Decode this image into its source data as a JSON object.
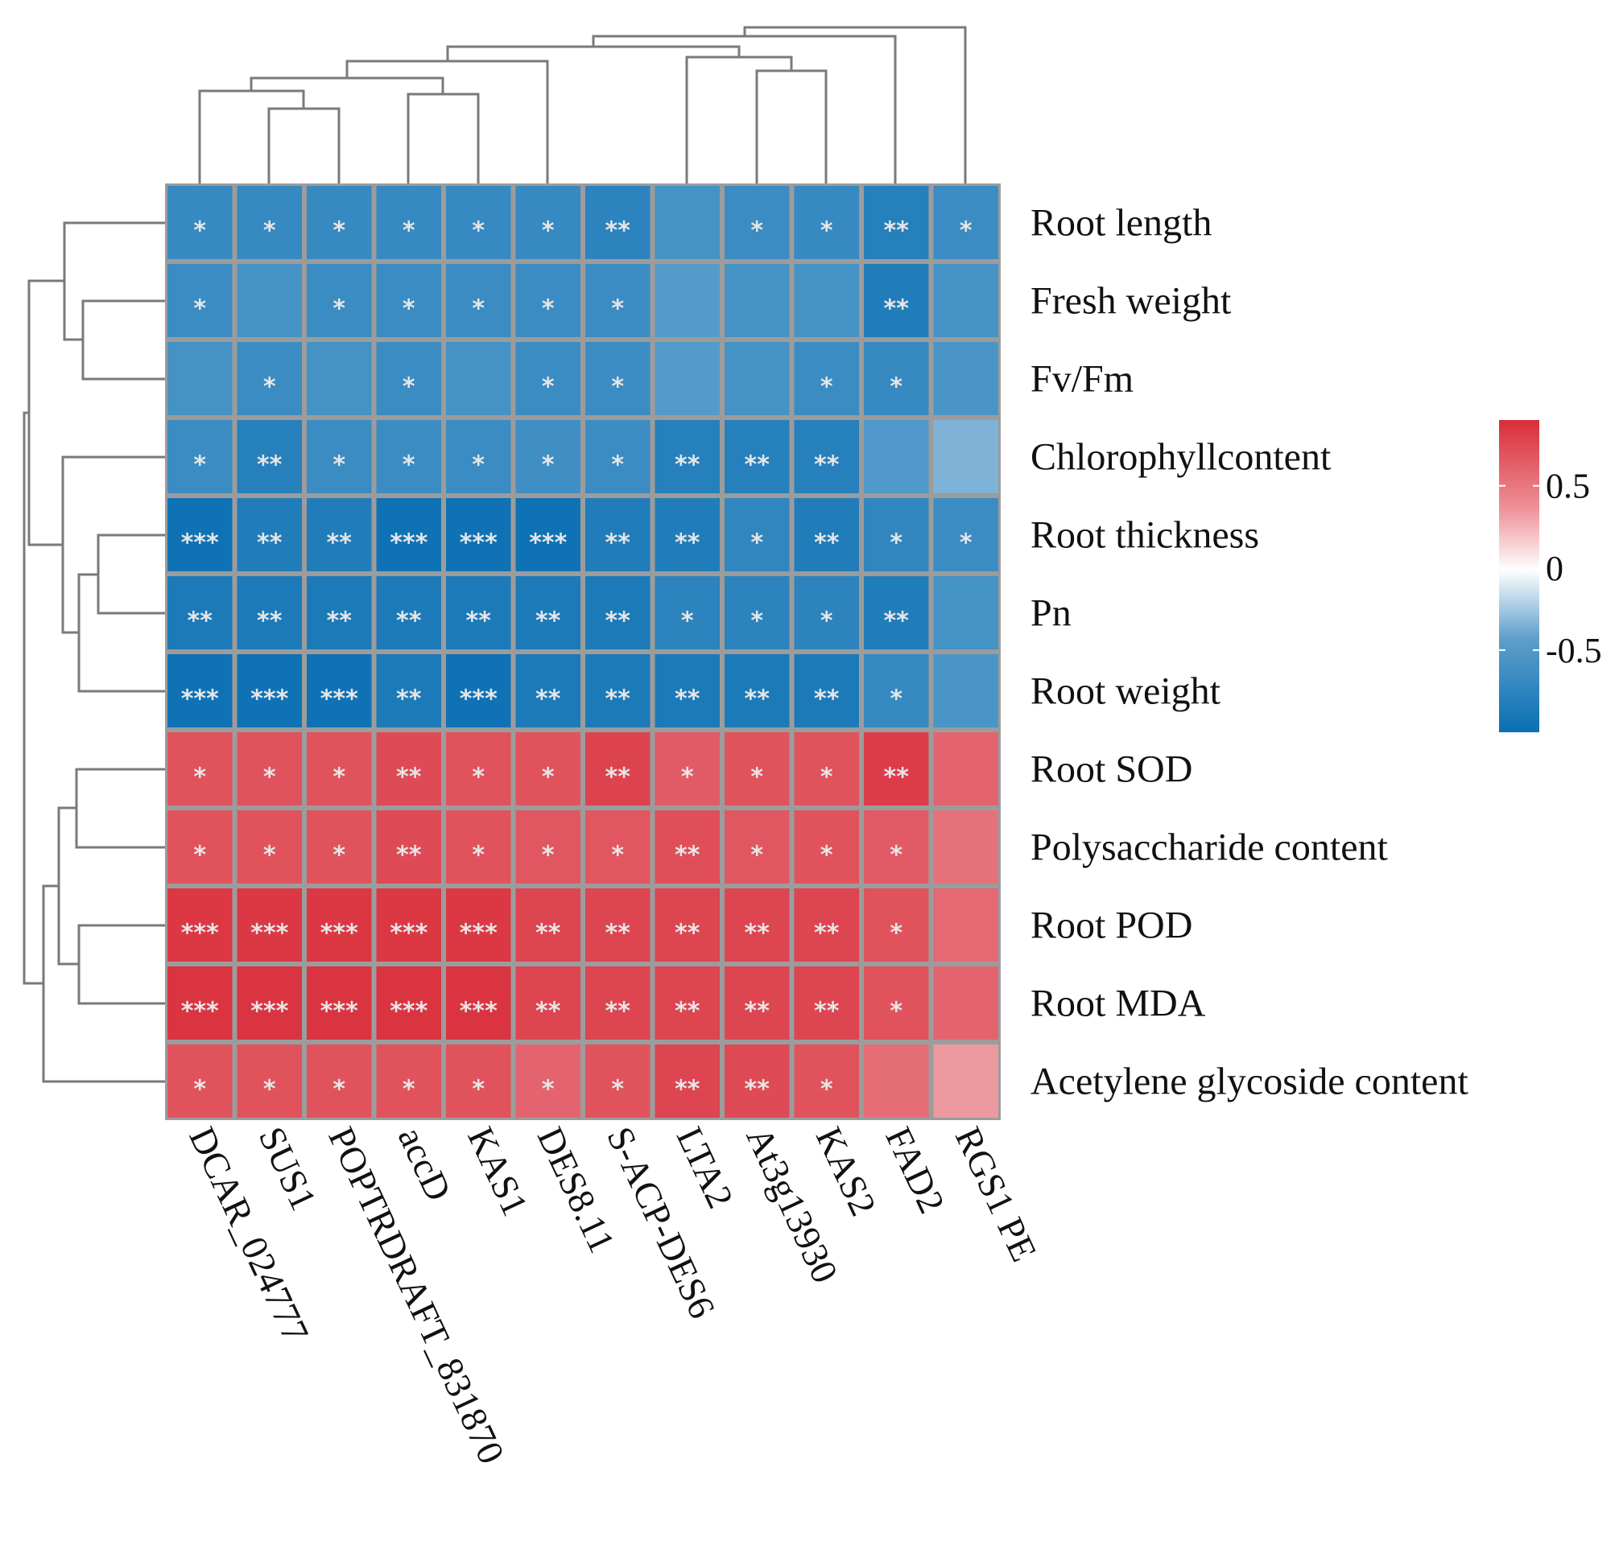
{
  "chart_data": {
    "type": "heatmap",
    "title": "",
    "rows": [
      "Root length",
      "Fresh weight",
      "Fv/Fm",
      "Chlorophyllcontent",
      "Root thickness",
      "Pn",
      "Root weight",
      "Root SOD",
      "Polysaccharide content",
      "Root POD",
      "Root MDA",
      "Acetylene glycoside content"
    ],
    "columns": [
      "DCAR_024777",
      "SUS1",
      "POPTRDRAFT_831870",
      "accD",
      "KAS1",
      "DES8.11",
      "S-ACP-DES6",
      "LTA2",
      "At3g13930",
      "KAS2",
      "FAD2",
      "RGS1 PE"
    ],
    "values": [
      [
        -0.78,
        -0.78,
        -0.78,
        -0.78,
        -0.78,
        -0.78,
        -0.82,
        -0.72,
        -0.76,
        -0.78,
        -0.84,
        -0.76
      ],
      [
        -0.76,
        -0.72,
        -0.76,
        -0.76,
        -0.76,
        -0.76,
        -0.76,
        -0.66,
        -0.72,
        -0.72,
        -0.86,
        -0.72
      ],
      [
        -0.72,
        -0.76,
        -0.72,
        -0.76,
        -0.72,
        -0.76,
        -0.76,
        -0.66,
        -0.72,
        -0.76,
        -0.78,
        -0.7
      ],
      [
        -0.76,
        -0.84,
        -0.76,
        -0.76,
        -0.76,
        -0.74,
        -0.76,
        -0.84,
        -0.84,
        -0.84,
        -0.68,
        -0.5
      ],
      [
        -0.93,
        -0.86,
        -0.86,
        -0.93,
        -0.93,
        -0.93,
        -0.86,
        -0.86,
        -0.8,
        -0.86,
        -0.8,
        -0.76
      ],
      [
        -0.88,
        -0.88,
        -0.88,
        -0.88,
        -0.88,
        -0.88,
        -0.88,
        -0.82,
        -0.82,
        -0.82,
        -0.86,
        -0.72
      ],
      [
        -0.93,
        -0.93,
        -0.93,
        -0.88,
        -0.93,
        -0.88,
        -0.88,
        -0.88,
        -0.88,
        -0.88,
        -0.78,
        -0.7
      ],
      [
        0.78,
        0.78,
        0.78,
        0.82,
        0.78,
        0.78,
        0.85,
        0.74,
        0.78,
        0.78,
        0.88,
        0.7
      ],
      [
        0.78,
        0.78,
        0.78,
        0.82,
        0.78,
        0.76,
        0.76,
        0.8,
        0.76,
        0.78,
        0.74,
        0.64
      ],
      [
        0.9,
        0.9,
        0.9,
        0.9,
        0.9,
        0.84,
        0.84,
        0.84,
        0.84,
        0.84,
        0.78,
        0.68
      ],
      [
        0.92,
        0.92,
        0.92,
        0.92,
        0.92,
        0.84,
        0.84,
        0.84,
        0.84,
        0.84,
        0.78,
        0.7
      ],
      [
        0.78,
        0.78,
        0.78,
        0.78,
        0.78,
        0.7,
        0.78,
        0.84,
        0.82,
        0.78,
        0.66,
        0.46
      ]
    ],
    "significance": [
      [
        "*",
        "*",
        "*",
        "*",
        "*",
        "*",
        "**",
        "",
        "*",
        "*",
        "**",
        "*"
      ],
      [
        "*",
        "",
        "*",
        "*",
        "*",
        "*",
        "*",
        "",
        "",
        "",
        "**",
        ""
      ],
      [
        "",
        "*",
        "",
        "*",
        "",
        "*",
        "*",
        "",
        "",
        "*",
        "*",
        ""
      ],
      [
        "*",
        "**",
        "*",
        "*",
        "*",
        "*",
        "*",
        "**",
        "**",
        "**",
        "",
        ""
      ],
      [
        "***",
        "**",
        "**",
        "***",
        "***",
        "***",
        "**",
        "**",
        "*",
        "**",
        "*",
        "*"
      ],
      [
        "**",
        "**",
        "**",
        "**",
        "**",
        "**",
        "**",
        "*",
        "*",
        "*",
        "**",
        ""
      ],
      [
        "***",
        "***",
        "***",
        "**",
        "***",
        "**",
        "**",
        "**",
        "**",
        "**",
        "*",
        ""
      ],
      [
        "*",
        "*",
        "*",
        "**",
        "*",
        "*",
        "**",
        "*",
        "*",
        "*",
        "**",
        ""
      ],
      [
        "*",
        "*",
        "*",
        "**",
        "*",
        "*",
        "*",
        "**",
        "*",
        "*",
        "*",
        ""
      ],
      [
        "***",
        "***",
        "***",
        "***",
        "***",
        "**",
        "**",
        "**",
        "**",
        "**",
        "*",
        ""
      ],
      [
        "***",
        "***",
        "***",
        "***",
        "***",
        "**",
        "**",
        "**",
        "**",
        "**",
        "*",
        ""
      ],
      [
        "*",
        "*",
        "*",
        "*",
        "*",
        "*",
        "*",
        "**",
        "**",
        "*",
        "",
        ""
      ]
    ],
    "colorbar": {
      "range": [
        -1,
        0.9
      ],
      "ticks": [
        0.5,
        0,
        -0.5
      ],
      "tick_labels": [
        "0.5",
        "0",
        "-0.5"
      ]
    },
    "colors": {
      "negative": "#0a6fb3",
      "neutral": "#ffffff",
      "positive": "#d92d3a",
      "grid": "#9c9c9c"
    }
  }
}
